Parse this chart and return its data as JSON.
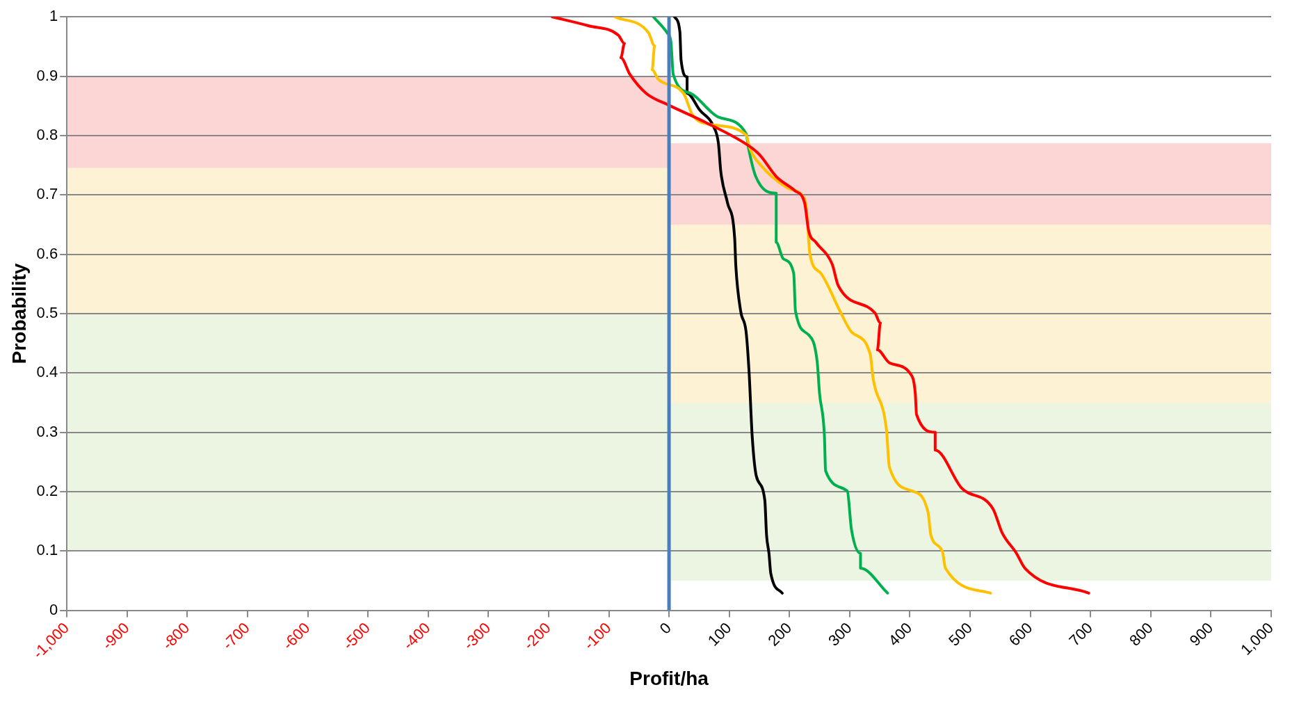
{
  "chart_data": {
    "type": "line",
    "xlabel": "Profit/ha",
    "ylabel": "Probability",
    "xlim": [
      -1000,
      1000
    ],
    "xticks": [
      {
        "value": -1000,
        "label": "-1,000"
      },
      -900,
      -800,
      -700,
      -600,
      -500,
      -400,
      -300,
      -200,
      -100,
      0,
      100,
      200,
      300,
      400,
      500,
      600,
      700,
      800,
      900,
      {
        "value": 1000,
        "label": "1,000"
      }
    ],
    "ylim": [
      0,
      1
    ],
    "yticks": [
      0,
      0.1,
      0.2,
      0.3,
      0.4,
      0.5,
      0.6,
      0.7,
      0.8,
      0.9,
      1
    ],
    "grid": "y",
    "legend": false,
    "marker": "none",
    "line_style": "solid",
    "series": [
      {
        "color": "#ff0000",
        "x": [
          -194,
          -134,
          -84,
          -74,
          -80,
          -65,
          -38,
          0,
          59,
          132,
          151,
          178,
          209,
          225,
          232,
          244,
          271,
          281,
          342,
          351,
          346,
          366,
          402,
          409,
          411,
          442,
          442,
          486,
          538,
          553,
          577,
          591,
          697
        ],
        "values": [
          1.0,
          0.985,
          0.969,
          0.955,
          0.931,
          0.903,
          0.871,
          0.851,
          0.823,
          0.783,
          0.767,
          0.731,
          0.707,
          0.687,
          0.639,
          0.62,
          0.583,
          0.547,
          0.501,
          0.484,
          0.439,
          0.417,
          0.397,
          0.365,
          0.33,
          0.3,
          0.27,
          0.206,
          0.171,
          0.131,
          0.096,
          0.071,
          0.029
        ]
      },
      {
        "color": "#ffc000",
        "x": [
          -90,
          -34,
          -24,
          -28,
          -18,
          24,
          39,
          66,
          128,
          134,
          155,
          198,
          221,
          228,
          234,
          252,
          284,
          303,
          334,
          339,
          361,
          366,
          404,
          430,
          435,
          454,
          459,
          534
        ],
        "values": [
          1.0,
          0.973,
          0.951,
          0.911,
          0.895,
          0.871,
          0.835,
          0.819,
          0.801,
          0.779,
          0.747,
          0.711,
          0.699,
          0.679,
          0.6,
          0.568,
          0.504,
          0.469,
          0.432,
          0.39,
          0.305,
          0.241,
          0.201,
          0.166,
          0.126,
          0.099,
          0.071,
          0.029
        ]
      },
      {
        "color": "#00b050",
        "x": [
          -26,
          -3,
          3,
          7,
          36,
          82,
          128,
          132,
          144,
          178,
          178,
          190,
          207,
          210,
          232,
          246,
          250,
          258,
          260,
          296,
          303,
          318,
          318,
          363
        ],
        "values": [
          1.0,
          0.973,
          0.959,
          0.903,
          0.871,
          0.831,
          0.803,
          0.779,
          0.731,
          0.703,
          0.62,
          0.592,
          0.568,
          0.504,
          0.464,
          0.419,
          0.365,
          0.295,
          0.235,
          0.201,
          0.136,
          0.096,
          0.071,
          0.029
        ]
      },
      {
        "color": "#000000",
        "x": [
          9,
          18,
          20,
          30,
          30,
          51,
          74,
          82,
          86,
          97,
          109,
          111,
          119,
          128,
          133,
          138,
          145,
          159,
          162,
          166,
          169,
          188
        ],
        "values": [
          1.0,
          0.975,
          0.927,
          0.899,
          0.871,
          0.843,
          0.815,
          0.787,
          0.739,
          0.687,
          0.627,
          0.579,
          0.504,
          0.469,
          0.4,
          0.295,
          0.226,
          0.186,
          0.126,
          0.096,
          0.062,
          0.029
        ]
      }
    ],
    "ref_lines": [
      {
        "axis": "x",
        "value": 0,
        "color": "#4a7ebb"
      }
    ],
    "bands": [
      {
        "axis": "y",
        "from": 0.745,
        "to": 0.9,
        "color": "#fcd5d5"
      },
      {
        "axis": "y",
        "from": 0.5,
        "to": 0.745,
        "color": "#fef2d5"
      },
      {
        "axis": "y",
        "from": 0.1,
        "to": 0.5,
        "color": "#ebf5e1"
      },
      {
        "axis": "y",
        "from": 0.65,
        "to": 0.787,
        "color": "#fcd5d5"
      },
      {
        "axis": "y",
        "from": 0.35,
        "to": 0.65,
        "color": "#fef2d5"
      },
      {
        "axis": "y",
        "from": 0.05,
        "to": 0.35,
        "color": "#ebf5e1"
      }
    ]
  }
}
